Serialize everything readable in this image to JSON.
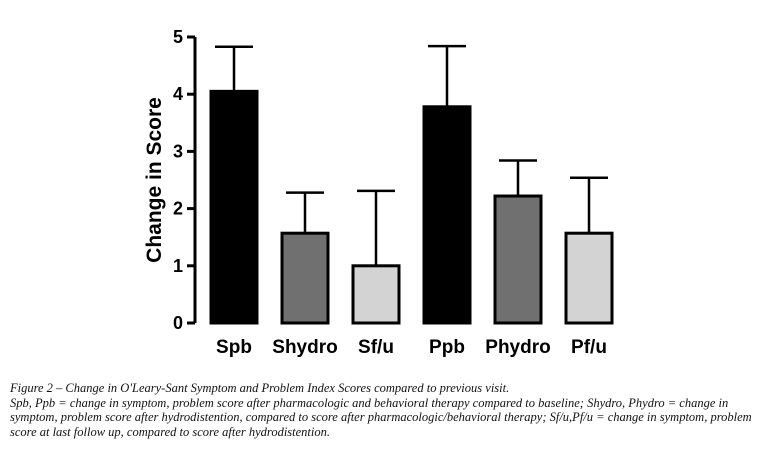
{
  "chart_data": {
    "type": "bar",
    "categories": [
      "Spb",
      "Shydro",
      "Sf/u",
      "Ppb",
      "Phydro",
      "Pf/u"
    ],
    "values": [
      4.05,
      1.57,
      1.0,
      3.78,
      2.22,
      1.57
    ],
    "error_upper": [
      4.83,
      2.28,
      2.31,
      4.84,
      2.84,
      2.54
    ],
    "ylabel": "Change in Score",
    "xlabel": "",
    "ylim": [
      0,
      5
    ],
    "yticks": [
      "0",
      "1",
      "2",
      "3",
      "4",
      "5"
    ],
    "bar_colors": [
      "#000000",
      "#707070",
      "#d3d3d3",
      "#000000",
      "#707070",
      "#d3d3d3"
    ],
    "grid": false,
    "legend": "none"
  },
  "caption": {
    "title": "Figure 2 – Change in O'Leary-Sant Symptom and Problem Index Scores compared to previous visit.",
    "text": "Spb, Ppb = change in symptom, problem score after pharmacologic and behavioral therapy compared to baseline; Shydro, Phydro = change in symptom, problem score after hydrodistention, compared to score after pharmacologic/behavioral therapy; Sf/u,Pf/u = change in symptom, problem score at last follow up, compared to score after hydrodistention."
  }
}
